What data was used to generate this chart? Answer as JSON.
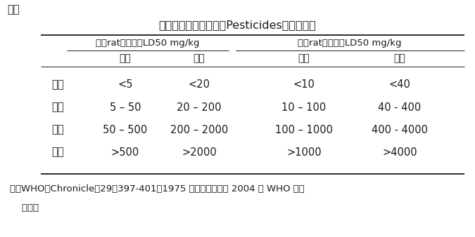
{
  "table_label": "表一",
  "title": "世界衛生組織殺蟲劑（Pesticides）毒性分類",
  "col_group1": "鼠（rat）經口服LD",
  "col_group1_sub": "50",
  "col_group1_suffix": " mg/kg",
  "col_group2": "鼠（rat）經皮膚LD",
  "col_group2_sub": "50",
  "col_group2_suffix": " mg/kg",
  "sub_col1": "固體",
  "sub_col2": "液體",
  "sub_col3": "固體",
  "sub_col4": "液體",
  "row_headers": [
    "極毒",
    "高毒",
    "中毒",
    "輕毒"
  ],
  "data": [
    [
      "<5",
      "<20",
      "<10",
      "<40"
    ],
    [
      "5 – 50",
      "20 – 200",
      "10 – 100",
      "40 - 400"
    ],
    [
      "50 – 500",
      "200 – 2000",
      "100 – 1000",
      "400 - 4000"
    ],
    [
      ">500",
      ">2000",
      ">1000",
      ">4000"
    ]
  ],
  "note_line1": "註：WHO，Chronicle，29：397-401，1975 年；該分類納入 2004 年 WHO 分類",
  "note_line2": "    指引。",
  "bg_color": "#ffffff",
  "text_color": "#1a1a1a",
  "font_size": 10.5,
  "title_font_size": 11.5
}
